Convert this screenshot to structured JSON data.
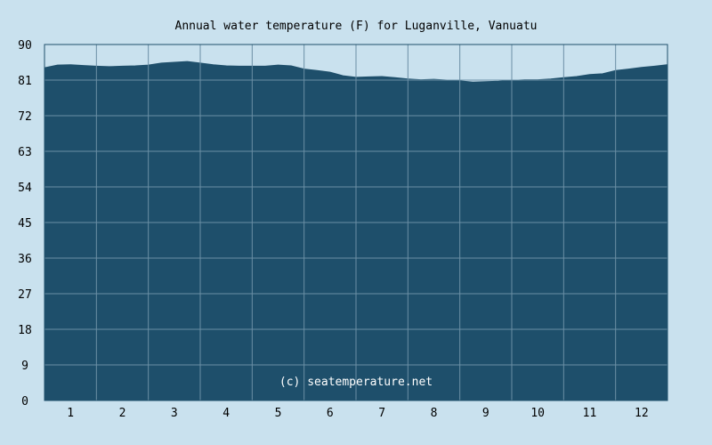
{
  "chart_data": {
    "type": "area",
    "title": "Annual water temperature (F) for Luganville, Vanuatu",
    "watermark": "(c) seatemperature.net",
    "ylim": [
      0,
      90
    ],
    "yticks": [
      0,
      9,
      18,
      27,
      36,
      45,
      54,
      63,
      72,
      81,
      90
    ],
    "xlim": [
      0,
      12
    ],
    "xticks": [
      "1",
      "2",
      "3",
      "4",
      "5",
      "6",
      "7",
      "8",
      "9",
      "10",
      "11",
      "12"
    ],
    "grid": true,
    "series": [
      {
        "x": [
          0,
          0.25,
          0.5,
          0.75,
          1,
          1.25,
          1.5,
          1.75,
          2,
          2.25,
          2.5,
          2.75,
          3,
          3.25,
          3.5,
          3.75,
          4,
          4.25,
          4.5,
          4.75,
          5,
          5.25,
          5.5,
          5.75,
          6,
          6.25,
          6.5,
          6.75,
          7,
          7.25,
          7.5,
          7.75,
          8,
          8.25,
          8.5,
          8.75,
          9,
          9.25,
          9.5,
          9.75,
          10,
          10.25,
          10.5,
          10.75,
          11,
          11.25,
          11.5,
          11.75,
          12
        ],
        "values": [
          84.1,
          84.8,
          84.9,
          84.7,
          84.5,
          84.4,
          84.5,
          84.6,
          84.8,
          85.3,
          85.5,
          85.7,
          85.3,
          84.9,
          84.6,
          84.5,
          84.5,
          84.5,
          84.8,
          84.6,
          83.8,
          83.4,
          83.0,
          82.1,
          81.7,
          81.8,
          81.9,
          81.6,
          81.3,
          81.1,
          81.2,
          81.0,
          80.8,
          80.5,
          80.6,
          80.7,
          80.9,
          81.1,
          81.1,
          81.3,
          81.6,
          81.9,
          82.4,
          82.6,
          83.4,
          83.8,
          84.2,
          84.5,
          84.9
        ]
      }
    ],
    "colors": {
      "background": "#c9e1ee",
      "area": "#1e4f6b",
      "grid": "#6b8fa5",
      "frame": "#1e4f6b",
      "watermark": "#ffffff"
    }
  }
}
